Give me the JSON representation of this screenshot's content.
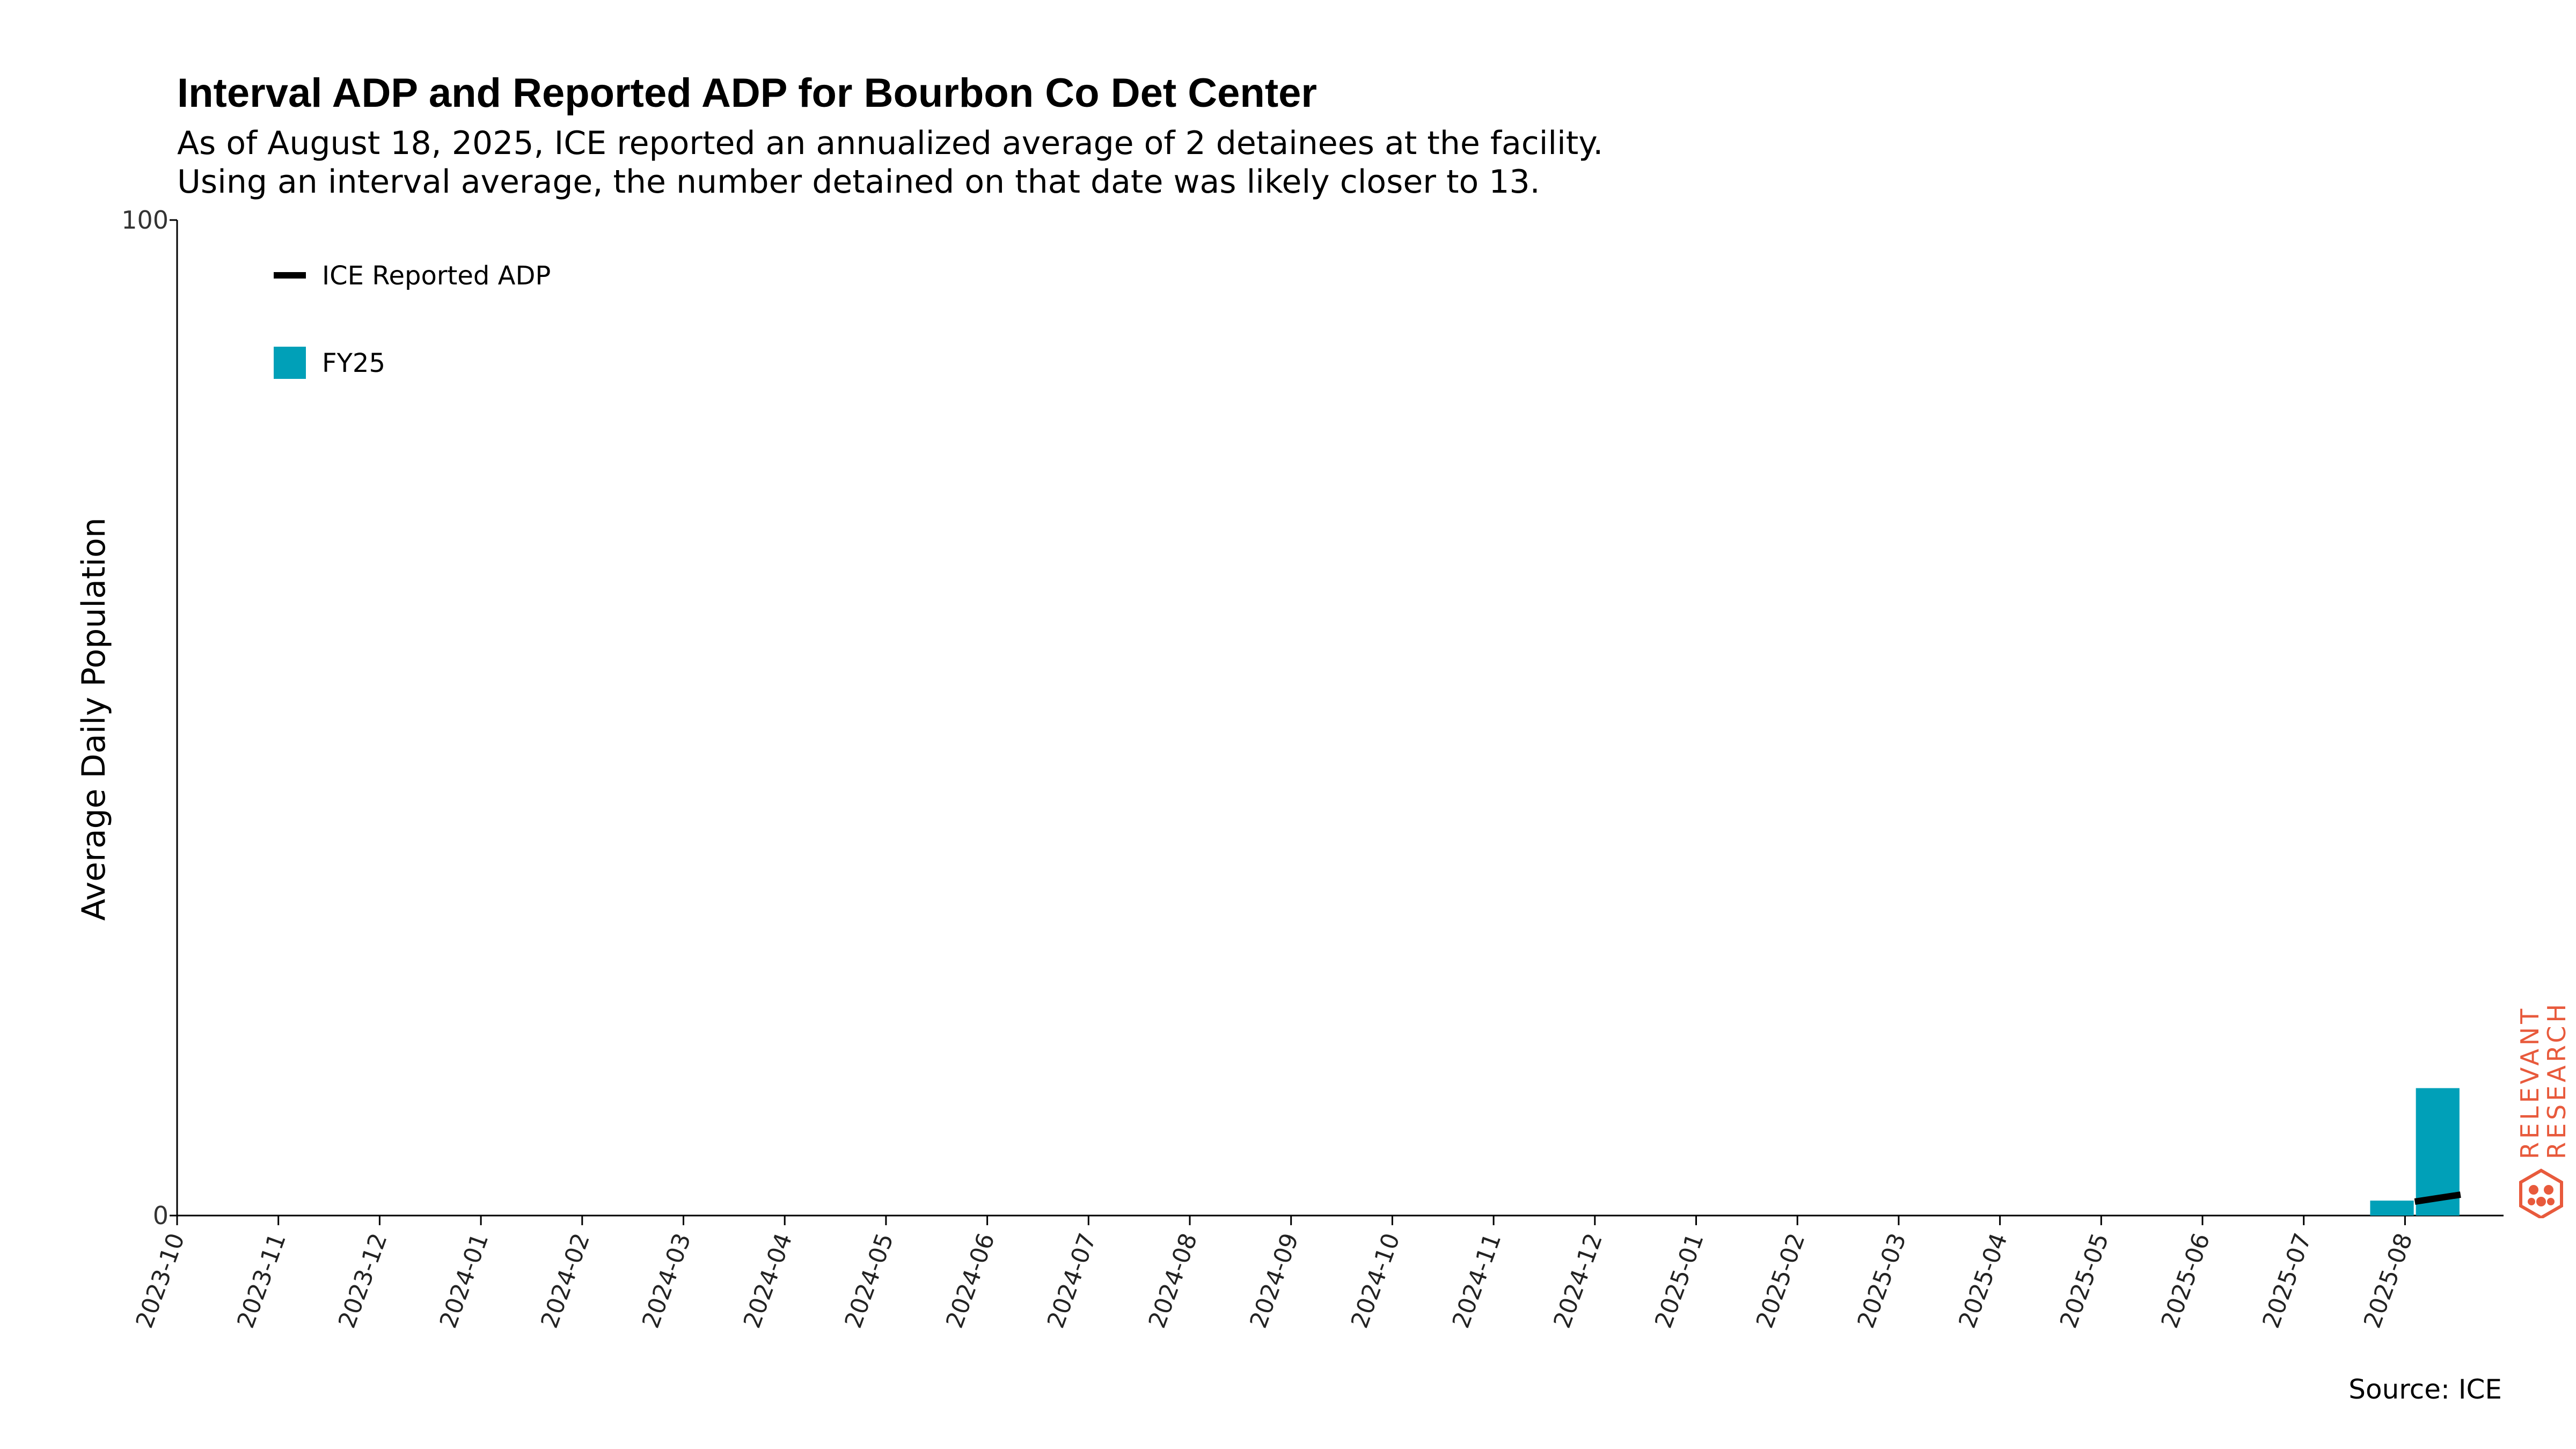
{
  "chart_data": {
    "type": "bar",
    "title": "Interval ADP and Reported ADP for Bourbon Co Det Center",
    "subtitle": [
      "As of August 18, 2025, ICE reported an annualized average of 2 detainees at the facility.",
      "Using an interval average, the number detained on that date was likely closer to 13."
    ],
    "ylabel": "Average Daily Population",
    "xlabel": "",
    "ylim": [
      0,
      100
    ],
    "yticks": [
      "0",
      "100"
    ],
    "xticks": [
      "2023-10",
      "2023-11",
      "2023-12",
      "2024-01",
      "2024-02",
      "2024-03",
      "2024-04",
      "2024-05",
      "2024-06",
      "2024-07",
      "2024-08",
      "2024-09",
      "2024-10",
      "2024-11",
      "2024-12",
      "2025-01",
      "2025-02",
      "2025-03",
      "2025-04",
      "2025-05",
      "2025-06",
      "2025-07",
      "2025-08"
    ],
    "bars": {
      "name": "FY25",
      "color": "#00a0b8",
      "data": [
        {
          "start": "2025-07-21",
          "end": "2025-08-04",
          "value": 1.5
        },
        {
          "start": "2025-08-04",
          "end": "2025-08-18",
          "value": 12.8
        }
      ]
    },
    "line": {
      "name": "ICE Reported ADP",
      "color": "#000000",
      "data": [
        {
          "x": "2025-08-04",
          "y": 1.4
        },
        {
          "x": "2025-08-18",
          "y": 2.1
        }
      ]
    },
    "legend_position": "top-left",
    "grid": false
  },
  "source": "Source: ICE",
  "watermark": {
    "line1": "RELEVANT",
    "line2": "RESEARCH",
    "color": "#e85a3c"
  }
}
